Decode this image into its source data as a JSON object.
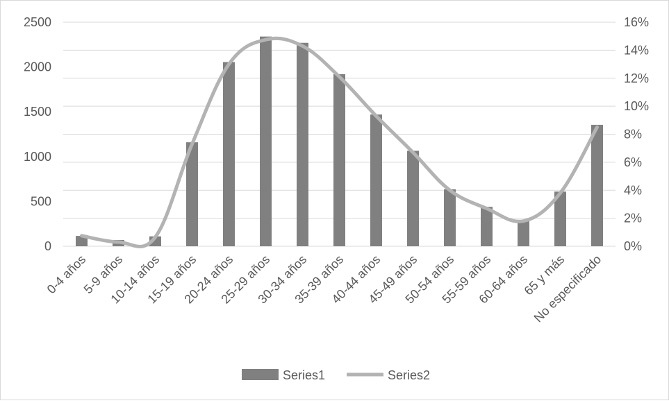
{
  "chart_data": {
    "type": "bar",
    "title": "",
    "xlabel": "",
    "ylabel": "",
    "categories": [
      "0-4 años",
      "5-9 años",
      "10-14 años",
      "15-19 años",
      "20-24 años",
      "25-29 años",
      "30-34 años",
      "35-39 años",
      "40-44 años",
      "45-49 años",
      "50-54 años",
      "55-59 años",
      "60-64 años",
      "65 y más",
      "No especificado"
    ],
    "ylim": [
      0,
      2500
    ],
    "yticks": [
      "0",
      "500",
      "1000",
      "1500",
      "2000",
      "2500"
    ],
    "y2lim": [
      0,
      0.16
    ],
    "y2ticks": [
      "0%",
      "2%",
      "4%",
      "6%",
      "8%",
      "10%",
      "12%",
      "14%",
      "16%"
    ],
    "series": [
      {
        "name": "Series1",
        "type": "bar",
        "axis": "left",
        "color": "#808080",
        "values": [
          115,
          70,
          110,
          1160,
          2055,
          2340,
          2270,
          1920,
          1470,
          1065,
          635,
          440,
          295,
          610,
          1355
        ]
      },
      {
        "name": "Series2",
        "type": "line",
        "axis": "right",
        "color": "#b3b3b3",
        "values": [
          0.0075,
          0.003,
          0.0065,
          0.073,
          0.13,
          0.1475,
          0.143,
          0.121,
          0.093,
          0.067,
          0.04,
          0.027,
          0.018,
          0.038,
          0.085
        ]
      }
    ],
    "grid": true,
    "legend": "bottom"
  }
}
